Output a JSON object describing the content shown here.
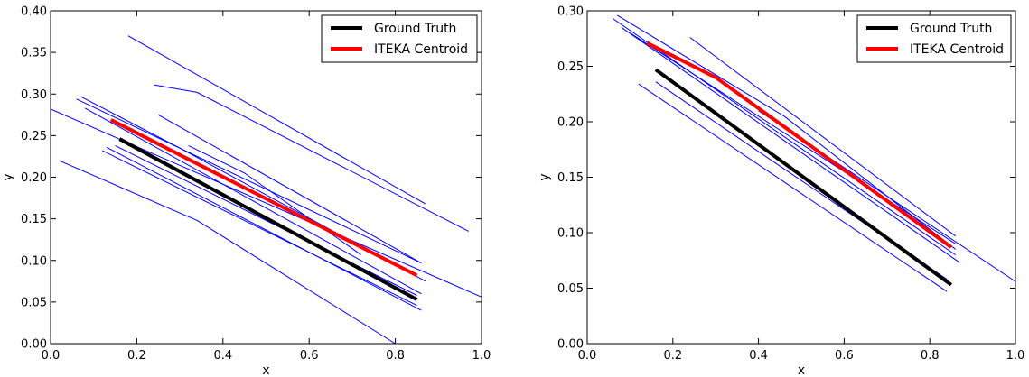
{
  "chart_data": [
    {
      "type": "line",
      "xlabel": "x",
      "ylabel": "y",
      "xlim": [
        0.0,
        1.0
      ],
      "ylim": [
        0.0,
        0.4
      ],
      "xticks": [
        "0.0",
        "0.2",
        "0.4",
        "0.6",
        "0.8",
        "1.0"
      ],
      "yticks": [
        "0.00",
        "0.05",
        "0.10",
        "0.15",
        "0.20",
        "0.25",
        "0.30",
        "0.35",
        "0.40"
      ],
      "legend_position": "top-right",
      "grid": false,
      "series": [
        {
          "name": "Ground Truth",
          "color": "#000000",
          "role": "highlight",
          "x": [
            0.16,
            0.85
          ],
          "y": [
            0.246,
            0.053
          ]
        },
        {
          "name": "ITEKA Centroid",
          "color": "#ff0000",
          "role": "highlight",
          "x": [
            0.14,
            0.85
          ],
          "y": [
            0.269,
            0.082
          ]
        }
      ],
      "background_lines": {
        "color": "#0000ff",
        "lines": [
          {
            "x": [
              0.18,
              0.87
            ],
            "y": [
              0.37,
              0.168
            ]
          },
          {
            "x": [
              0.24,
              0.34,
              0.97
            ],
            "y": [
              0.311,
              0.302,
              0.135
            ]
          },
          {
            "x": [
              0.0,
              1.0
            ],
            "y": [
              0.282,
              0.056
            ]
          },
          {
            "x": [
              0.07,
              0.3,
              0.87
            ],
            "y": [
              0.297,
              0.235,
              0.075
            ]
          },
          {
            "x": [
              0.06,
              0.86
            ],
            "y": [
              0.294,
              0.097
            ]
          },
          {
            "x": [
              0.08,
              0.86
            ],
            "y": [
              0.283,
              0.06
            ]
          },
          {
            "x": [
              0.25,
              0.86
            ],
            "y": [
              0.275,
              0.097
            ]
          },
          {
            "x": [
              0.02,
              0.34,
              0.8
            ],
            "y": [
              0.22,
              0.148,
              0.0
            ]
          },
          {
            "x": [
              0.13,
              0.86
            ],
            "y": [
              0.236,
              0.04
            ]
          },
          {
            "x": [
              0.12,
              0.85
            ],
            "y": [
              0.232,
              0.046
            ]
          },
          {
            "x": [
              0.15,
              0.85
            ],
            "y": [
              0.238,
              0.058
            ]
          },
          {
            "x": [
              0.32,
              0.45,
              0.72
            ],
            "y": [
              0.238,
              0.205,
              0.107
            ]
          }
        ]
      }
    },
    {
      "type": "line",
      "xlabel": "x",
      "ylabel": "y",
      "xlim": [
        0.0,
        1.0
      ],
      "ylim": [
        0.0,
        0.3
      ],
      "xticks": [
        "0.0",
        "0.2",
        "0.4",
        "0.6",
        "0.8",
        "1.0"
      ],
      "yticks": [
        "0.00",
        "0.05",
        "0.10",
        "0.15",
        "0.20",
        "0.25",
        "0.30"
      ],
      "legend_position": "top-right",
      "grid": false,
      "series": [
        {
          "name": "Ground Truth",
          "color": "#000000",
          "role": "highlight",
          "x": [
            0.16,
            0.85
          ],
          "y": [
            0.247,
            0.053
          ]
        },
        {
          "name": "ITEKA Centroid",
          "color": "#ff0000",
          "role": "highlight",
          "x": [
            0.14,
            0.3,
            0.85
          ],
          "y": [
            0.271,
            0.24,
            0.087
          ]
        }
      ],
      "background_lines": {
        "color": "#0000ff",
        "lines": [
          {
            "x": [
              0.24,
              0.86
            ],
            "y": [
              0.276,
              0.097
            ]
          },
          {
            "x": [
              0.06,
              0.86
            ],
            "y": [
              0.293,
              0.08
            ]
          },
          {
            "x": [
              0.07,
              0.46,
              0.86
            ],
            "y": [
              0.296,
              0.205,
              0.085
            ]
          },
          {
            "x": [
              0.08,
              0.87
            ],
            "y": [
              0.285,
              0.073
            ]
          },
          {
            "x": [
              0.1,
              0.86
            ],
            "y": [
              0.28,
              0.09
            ]
          },
          {
            "x": [
              0.4,
              1.0
            ],
            "y": [
              0.21,
              0.056
            ]
          },
          {
            "x": [
              0.12,
              0.84
            ],
            "y": [
              0.234,
              0.047
            ]
          },
          {
            "x": [
              0.16,
              0.84
            ],
            "y": [
              0.236,
              0.058
            ]
          }
        ]
      }
    }
  ]
}
